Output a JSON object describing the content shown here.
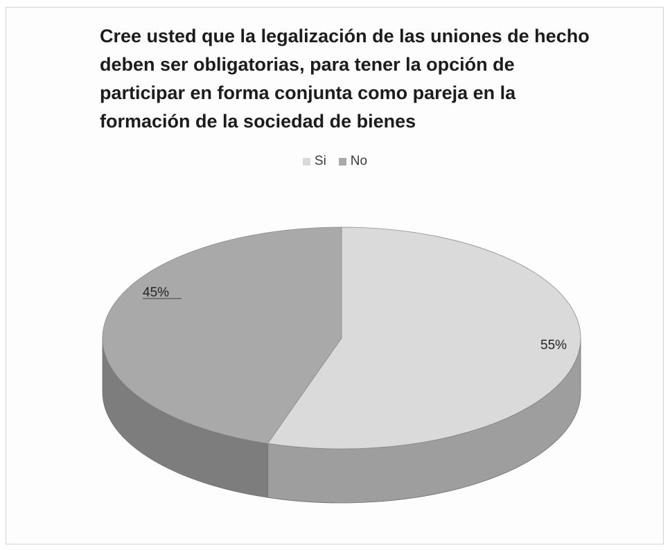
{
  "chart_data": {
    "type": "pie",
    "title_lines": [
      "Cree usted que la legalización de las uniones de hecho",
      "deben ser obligatorias, para tener la opción de",
      "participar en forma conjunta como pareja en la",
      "formación de la sociedad de bienes"
    ],
    "legend_position": "top",
    "three_d": true,
    "slices": [
      {
        "label": "Si",
        "value": 55,
        "display": "55%",
        "color": "#dadada"
      },
      {
        "label": "No",
        "value": 45,
        "display": "45%",
        "color": "#a9a9a9"
      }
    ]
  },
  "colors": {
    "si_side": "#9e9e9e",
    "no_side": "#7d7d7d",
    "label_line": "#555555"
  }
}
